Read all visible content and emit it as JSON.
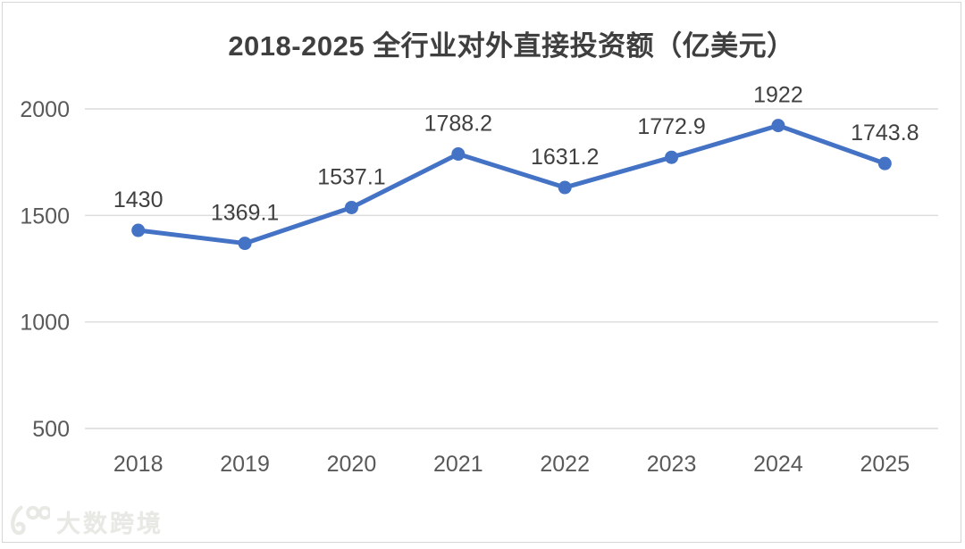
{
  "title": "2018-2025 全行业对外直接投资额（亿美元）",
  "watermark": {
    "logo_text": "100",
    "brand": "大数跨境"
  },
  "chart_data": {
    "type": "line",
    "title": "2018-2025 全行业对外直接投资额（亿美元）",
    "categories": [
      "2018",
      "2019",
      "2020",
      "2021",
      "2022",
      "2023",
      "2024",
      "2025"
    ],
    "values": [
      1430,
      1369.1,
      1537.1,
      1788.2,
      1631.2,
      1772.9,
      1922,
      1743.8
    ],
    "point_labels": [
      "1430",
      "1369.1",
      "1537.1",
      "1788.2",
      "1631.2",
      "1772.9",
      "1922",
      "1743.8"
    ],
    "xlabel": "",
    "ylabel": "",
    "ylim": [
      500,
      2000
    ],
    "yticks": [
      500,
      1000,
      1500,
      2000
    ],
    "grid": true,
    "legend": false,
    "line_color": "#4472C4",
    "marker_color": "#4472C4",
    "label_color": "#404040",
    "tick_color": "#595959",
    "grid_color": "#dcdcdc"
  }
}
